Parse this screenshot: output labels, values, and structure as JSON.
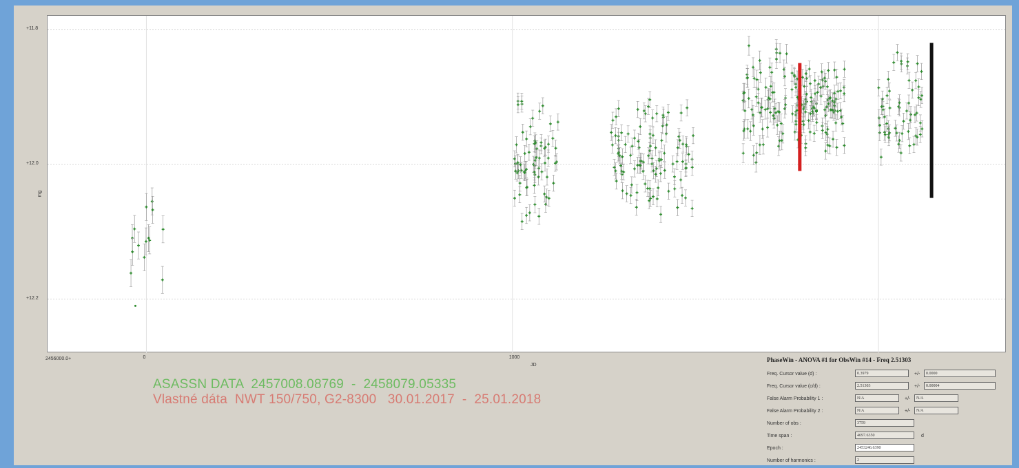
{
  "chart_data": {
    "type": "scatter",
    "xlabel": "JD",
    "ylabel": "mg",
    "x_offset_label": "2456000.0+",
    "xlim": [
      -270,
      2350
    ],
    "ylim": [
      12.28,
      11.78
    ],
    "y_inverted": true,
    "yticks": [
      11.8,
      12.0,
      12.2
    ],
    "ytick_labels": [
      "11.8",
      "12.0",
      "12.2"
    ],
    "xticks": [
      0,
      1000
    ],
    "xtick_labels": [
      "0",
      "1000"
    ],
    "grid": true,
    "series": [
      {
        "color": "#2e8b2e",
        "marker": "cross-with-errorbar",
        "segments": [
          {
            "x0": -50,
            "x1": 50,
            "n": 14,
            "y_lo": 12.03,
            "y_hi": 12.19,
            "err": 0.02
          },
          {
            "x0": 1005,
            "x1": 1130,
            "n": 70,
            "y_lo": 11.88,
            "y_hi": 12.11,
            "err": 0.012
          },
          {
            "x0": 1270,
            "x1": 1500,
            "n": 110,
            "y_lo": 11.88,
            "y_hi": 12.1,
            "err": 0.012
          },
          {
            "x0": 1630,
            "x1": 1750,
            "n": 70,
            "y_lo": 11.8,
            "y_hi": 12.02,
            "err": 0.014
          },
          {
            "x0": 1760,
            "x1": 1910,
            "n": 110,
            "y_lo": 11.83,
            "y_hi": 12.0,
            "err": 0.012
          },
          {
            "x0": 2000,
            "x1": 2120,
            "n": 60,
            "y_lo": 11.8,
            "y_hi": 12.03,
            "err": 0.012
          }
        ],
        "outliers": [
          {
            "x": -30,
            "y": 12.21
          }
        ]
      },
      {
        "color": "#d42020",
        "marker": "vertical-band",
        "x": 1785,
        "y_range": [
          11.85,
          12.01
        ]
      },
      {
        "color": "#111111",
        "marker": "vertical-band",
        "x": 2145,
        "y_range": [
          11.82,
          12.05
        ]
      }
    ]
  },
  "annotations": {
    "line1": "ASASSN DATA  2457008.08769  -  2458079.05335",
    "line2": "Vlastné dáta  NWT 150/750, G2-8300   30.01.2017  -  25.01.2018",
    "line1_color": "#6dbb61",
    "line2_color": "#d77b73"
  },
  "info_panel": {
    "title": "PhaseWin - ANOVA #1 for ObsWin #14 - Freq 2.51303",
    "rows": [
      {
        "label": "Freq. Cursor value (d) :",
        "value": "0.3979",
        "pm": "+/-",
        "err": "0.0000"
      },
      {
        "label": "Freq. Cursor value (c/d) :",
        "value": "2.51303",
        "pm": "+/-",
        "err": "0.00004"
      },
      {
        "label": "False Alarm Probability 1 :",
        "value": "N/A",
        "pm": "+/-",
        "err": "N/A"
      },
      {
        "label": "False Alarm Probability 2 :",
        "value": "N/A",
        "pm": "+/-",
        "err": "N/A"
      },
      {
        "label": "Number of obs :",
        "value": "3759"
      },
      {
        "label": "Time span :",
        "value": "4697.6350",
        "unit": "d"
      },
      {
        "label": "Epoch :",
        "value": "2453246.6390"
      },
      {
        "label": "Number of harmonics :",
        "value": "2"
      }
    ]
  }
}
